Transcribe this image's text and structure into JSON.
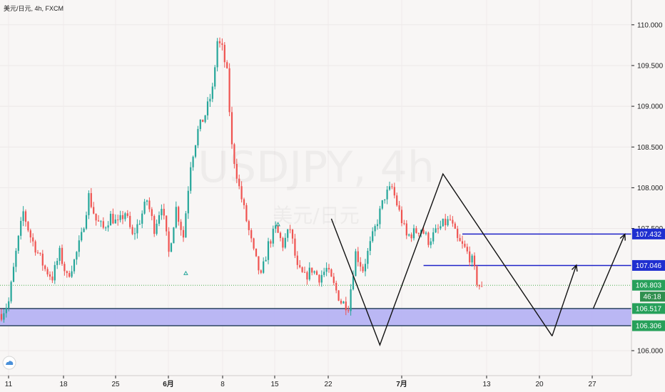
{
  "header": {
    "title": "美元/日元, 4h, FXCM"
  },
  "watermark": {
    "symbol": "USDJPY, 4h",
    "name": "美元/日元"
  },
  "colors": {
    "up": "#26a69a",
    "down": "#ef5350",
    "level_line": "#1e22c8",
    "zone_fill": "#b3b0f4",
    "zone_border": "#0d2b45",
    "price_tag_blue": "#1f2fd0",
    "price_tag_green": "#26a05a",
    "drawing": "#111111",
    "current_price": "#4caf50"
  },
  "chart_data": {
    "type": "candlestick",
    "symbol": "USDJPY",
    "timeframe": "4h",
    "source": "FXCM",
    "x_ticks": [
      "11",
      "18",
      "25",
      "6月",
      "8",
      "15",
      "22",
      "7月",
      "13",
      "20",
      "27"
    ],
    "y_ticks": [
      "110.000",
      "109.500",
      "109.000",
      "108.500",
      "108.000",
      "107.500",
      "106.000"
    ],
    "ylim": [
      105.75,
      110.25
    ],
    "close_path": [
      [
        0,
        106.45
      ],
      [
        3,
        106.6
      ],
      [
        6,
        107.2
      ],
      [
        9,
        107.7
      ],
      [
        12,
        107.4
      ],
      [
        15,
        107.2
      ],
      [
        18,
        107.0
      ],
      [
        21,
        106.9
      ],
      [
        24,
        107.2
      ],
      [
        27,
        106.9
      ],
      [
        30,
        107.1
      ],
      [
        33,
        107.4
      ],
      [
        36,
        107.9
      ],
      [
        39,
        107.6
      ],
      [
        42,
        107.5
      ],
      [
        45,
        107.65
      ],
      [
        48,
        107.55
      ],
      [
        51,
        107.7
      ],
      [
        54,
        107.4
      ],
      [
        57,
        107.6
      ],
      [
        60,
        107.85
      ],
      [
        63,
        107.5
      ],
      [
        66,
        107.8
      ],
      [
        69,
        107.2
      ],
      [
        72,
        107.75
      ],
      [
        75,
        107.4
      ],
      [
        78,
        108.3
      ],
      [
        81,
        108.7
      ],
      [
        84,
        108.9
      ],
      [
        87,
        109.2
      ],
      [
        89,
        109.8
      ],
      [
        91,
        109.7
      ],
      [
        93,
        109.4
      ],
      [
        95,
        108.5
      ],
      [
        98,
        108.0
      ],
      [
        101,
        107.6
      ],
      [
        104,
        107.2
      ],
      [
        107,
        106.9
      ],
      [
        110,
        107.3
      ],
      [
        113,
        107.5
      ],
      [
        116,
        107.3
      ],
      [
        119,
        107.5
      ],
      [
        122,
        107.0
      ],
      [
        125,
        106.9
      ],
      [
        128,
        107.0
      ],
      [
        131,
        106.9
      ],
      [
        134,
        107.0
      ],
      [
        137,
        106.8
      ],
      [
        140,
        106.6
      ],
      [
        143,
        106.55
      ],
      [
        146,
        107.2
      ],
      [
        149,
        107.0
      ],
      [
        152,
        107.3
      ],
      [
        155,
        107.6
      ],
      [
        158,
        107.9
      ],
      [
        161,
        108.0
      ],
      [
        164,
        107.7
      ],
      [
        167,
        107.4
      ],
      [
        170,
        107.45
      ],
      [
        173,
        107.5
      ],
      [
        176,
        107.35
      ],
      [
        179,
        107.45
      ],
      [
        182,
        107.55
      ],
      [
        185,
        107.6
      ],
      [
        188,
        107.35
      ],
      [
        191,
        107.25
      ],
      [
        194,
        107.1
      ],
      [
        196,
        106.85
      ],
      [
        198,
        106.75
      ]
    ],
    "last_price": 106.803,
    "countdown": "46:18",
    "levels": [
      107.432,
      107.046
    ],
    "zone": [
      106.306,
      106.517
    ],
    "price_tags": [
      {
        "label": "107.432",
        "price": 107.432,
        "style": "blue"
      },
      {
        "label": "107.046",
        "price": 107.046,
        "style": "blue"
      },
      {
        "label": "106.803",
        "price": 106.803,
        "style": "green"
      },
      {
        "label": "106.517",
        "price": 106.517,
        "style": "green"
      },
      {
        "label": "106.306",
        "price": 106.306,
        "style": "green"
      }
    ],
    "drawings": {
      "zigzag": [
        [
          136,
          107.62
        ],
        [
          156,
          106.07
        ],
        [
          182,
          108.17
        ],
        [
          227,
          106.18
        ]
      ],
      "arrows": [
        [
          [
            227,
            106.18
          ],
          [
            237,
            107.05
          ]
        ],
        [
          [
            244,
            106.52
          ],
          [
            257,
            107.43
          ]
        ]
      ],
      "level_start_x": {
        "107.432": 190,
        "107.046": 174
      },
      "markers": [
        [
          76,
          106.95
        ],
        [
          114,
          107.55
        ]
      ]
    }
  }
}
